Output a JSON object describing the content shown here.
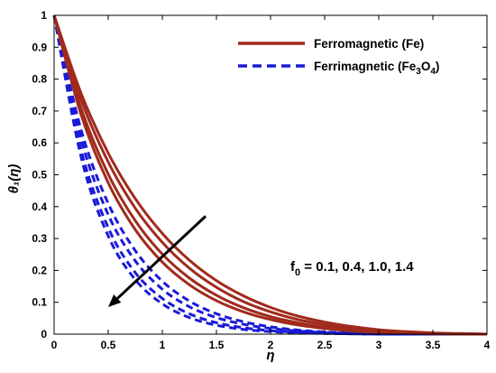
{
  "chart_data": {
    "type": "line",
    "xlabel": "η",
    "ylabel": "θ₁(η)",
    "xlim": [
      0,
      4
    ],
    "ylim": [
      0,
      1
    ],
    "x_ticks": [
      "0",
      "0.5",
      "1",
      "1.5",
      "2",
      "2.5",
      "3",
      "3.5",
      "4"
    ],
    "y_ticks": [
      "0",
      "0.1",
      "0.2",
      "0.3",
      "0.4",
      "0.5",
      "0.6",
      "0.7",
      "0.8",
      "0.9",
      "1"
    ],
    "grid": false,
    "legend_position": "top-right",
    "legend": [
      {
        "label": "Ferromagnetic (Fe)",
        "style": "solid",
        "color": "#a02a1c"
      },
      {
        "label": "Ferrimagnetic (Fe3O4)",
        "style": "dashed",
        "color": "#1a1ad8"
      }
    ],
    "annotation": "f0 = 0.1, 0.4, 1.0, 1.4",
    "arrow_from": [
      1.4,
      0.37
    ],
    "arrow_to": [
      0.5,
      0.085
    ],
    "x": [
      0,
      0.25,
      0.5,
      0.75,
      1.0,
      1.25,
      1.5,
      1.75,
      2.0,
      2.25,
      2.5,
      2.75,
      3.0,
      3.25,
      3.5,
      3.75,
      4.0
    ],
    "series": [
      {
        "name": "Ferromagnetic (Fe)",
        "values": [
          1.0,
          0.755,
          0.568,
          0.425,
          0.316,
          0.232,
          0.168,
          0.12,
          0.084,
          0.057,
          0.038,
          0.024,
          0.014,
          0.008,
          0.004,
          0.002,
          0.0
        ]
      },
      {
        "name": "",
        "values": [
          1.0,
          0.735,
          0.54,
          0.395,
          0.288,
          0.207,
          0.147,
          0.102,
          0.07,
          0.046,
          0.03,
          0.018,
          0.011,
          0.006,
          0.003,
          0.001,
          0.0
        ]
      },
      {
        "name": "",
        "values": [
          1.0,
          0.708,
          0.502,
          0.356,
          0.251,
          0.176,
          0.122,
          0.083,
          0.055,
          0.036,
          0.022,
          0.013,
          0.008,
          0.004,
          0.002,
          0.001,
          0.0
        ]
      },
      {
        "name": "",
        "values": [
          1.0,
          0.688,
          0.475,
          0.328,
          0.226,
          0.155,
          0.105,
          0.07,
          0.046,
          0.029,
          0.018,
          0.01,
          0.006,
          0.003,
          0.001,
          0.0,
          0.0
        ]
      },
      {
        "name": "Ferrimagnetic (Fe3O4)",
        "values": [
          1.0,
          0.64,
          0.41,
          0.262,
          0.166,
          0.104,
          0.064,
          0.039,
          0.023,
          0.013,
          0.007,
          0.004,
          0.002,
          0.001,
          0.0,
          0.0,
          0.0
        ]
      },
      {
        "name": "",
        "values": [
          1.0,
          0.612,
          0.375,
          0.23,
          0.141,
          0.086,
          0.052,
          0.031,
          0.018,
          0.01,
          0.005,
          0.003,
          0.001,
          0.0,
          0.0,
          0.0,
          0.0
        ]
      },
      {
        "name": "",
        "values": [
          1.0,
          0.578,
          0.334,
          0.193,
          0.112,
          0.064,
          0.036,
          0.02,
          0.011,
          0.006,
          0.003,
          0.001,
          0.0,
          0.0,
          0.0,
          0.0,
          0.0
        ]
      },
      {
        "name": "",
        "values": [
          1.0,
          0.555,
          0.308,
          0.171,
          0.095,
          0.052,
          0.028,
          0.015,
          0.008,
          0.004,
          0.002,
          0.001,
          0.0,
          0.0,
          0.0,
          0.0,
          0.0
        ]
      }
    ],
    "series_styles": [
      "solid",
      "solid",
      "solid",
      "solid",
      "dashed",
      "dashed",
      "dashed",
      "dashed"
    ],
    "colors": {
      "fe": "#a02a1c",
      "fe3o4": "#1a1ad8",
      "axis": "#000000"
    }
  }
}
